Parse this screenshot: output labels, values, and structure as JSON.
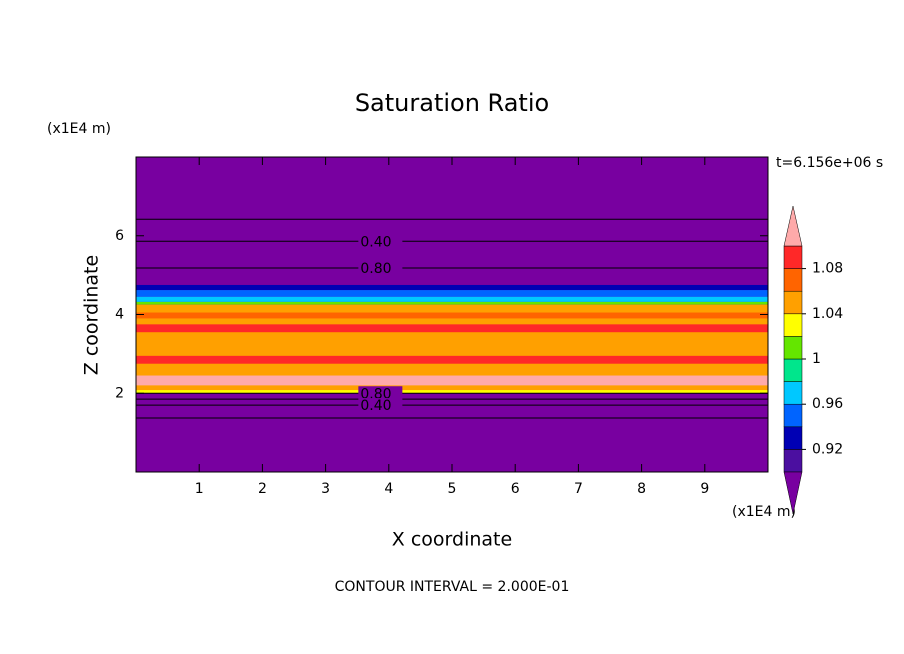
{
  "chart_data": {
    "type": "contour",
    "title": "Saturation Ratio",
    "x_label": "X coordinate",
    "y_label": "Z coordinate",
    "x_unit": "(x1E4 m)",
    "y_unit": "(x1E4 m)",
    "time_label": "t=6.156e+06 s",
    "footer": "CONTOUR INTERVAL = 2.000E-01",
    "xlim": [
      0,
      10
    ],
    "xticks": [
      1,
      2,
      3,
      4,
      5,
      6,
      7,
      8,
      9
    ],
    "ylim": [
      0,
      8
    ],
    "yticks": [
      2,
      4,
      6
    ],
    "background_color": "#7800a0",
    "field_bands": [
      {
        "zlim": [
          4.62,
          4.75
        ],
        "color": "#0000b4"
      },
      {
        "zlim": [
          4.45,
          4.62
        ],
        "color": "#0064ff"
      },
      {
        "zlim": [
          4.32,
          4.45
        ],
        "color": "#00c8ff"
      },
      {
        "zlim": [
          4.25,
          4.32
        ],
        "color": "#64e600"
      },
      {
        "zlim": [
          2.0,
          4.25
        ],
        "color": "#ffa000"
      },
      {
        "zlim": [
          3.9,
          4.05
        ],
        "color": "#ff6400"
      },
      {
        "zlim": [
          3.55,
          3.75
        ],
        "color": "#ff2828"
      },
      {
        "zlim": [
          2.75,
          2.95
        ],
        "color": "#ff2828"
      },
      {
        "zlim": [
          2.2,
          2.45
        ],
        "color": "#ffaaaa"
      },
      {
        "zlim": [
          2.0,
          2.08
        ],
        "color": "#ffff00"
      }
    ],
    "contour_lines": [
      {
        "z": 6.42
      },
      {
        "z": 5.86,
        "label": {
          "value": 0.4,
          "label": "0.40"
        }
      },
      {
        "z": 5.18,
        "label": {
          "value": 0.8,
          "label": "0.80"
        }
      },
      {
        "z": 2.0,
        "label": {
          "value": 0.8,
          "label": "0.80"
        }
      },
      {
        "z": 1.85
      },
      {
        "z": 1.7,
        "label": {
          "value": 0.4,
          "label": "0.40"
        }
      },
      {
        "z": 1.37
      }
    ],
    "colorbar": {
      "levels": [
        0.9,
        0.92,
        0.94,
        0.96,
        0.98,
        1,
        1.02,
        1.04,
        1.06,
        1.08,
        1.1
      ],
      "colors": [
        "#4b0fa0",
        "#0000b4",
        "#0064ff",
        "#00c8ff",
        "#00e68c",
        "#64e600",
        "#ffff00",
        "#ffa000",
        "#ff6400",
        "#ff2828"
      ],
      "under_color": "#7800a0",
      "over_color": "#ffaaaa",
      "ticks": [
        0.92,
        0.96,
        1,
        1.04,
        1.08
      ]
    }
  }
}
